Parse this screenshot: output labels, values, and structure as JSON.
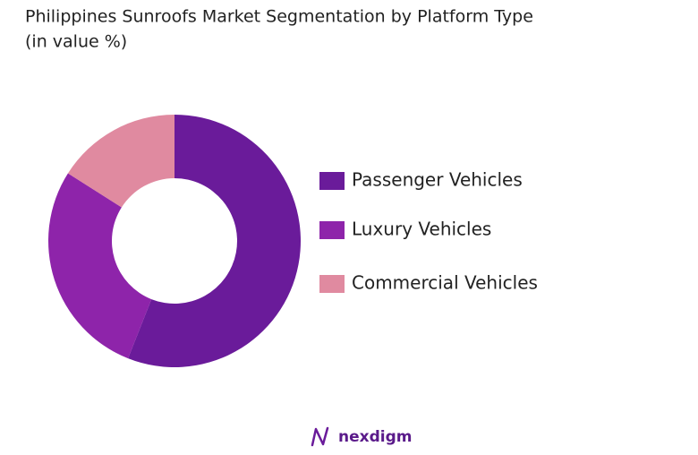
{
  "chart_data": {
    "type": "donut",
    "title": "Philippines Sunroofs Market Segmentation by Platform Type",
    "subtitle": "(in value %)",
    "categories": [
      "Passenger Vehicles",
      "Luxury Vehicles",
      "Commercial Vehicles"
    ],
    "values": [
      56,
      28,
      16
    ],
    "colors": [
      "#6a1b9a",
      "#8e24aa",
      "#e08aa0"
    ],
    "legend": "right"
  },
  "footer": {
    "logo": "nexdigm"
  }
}
